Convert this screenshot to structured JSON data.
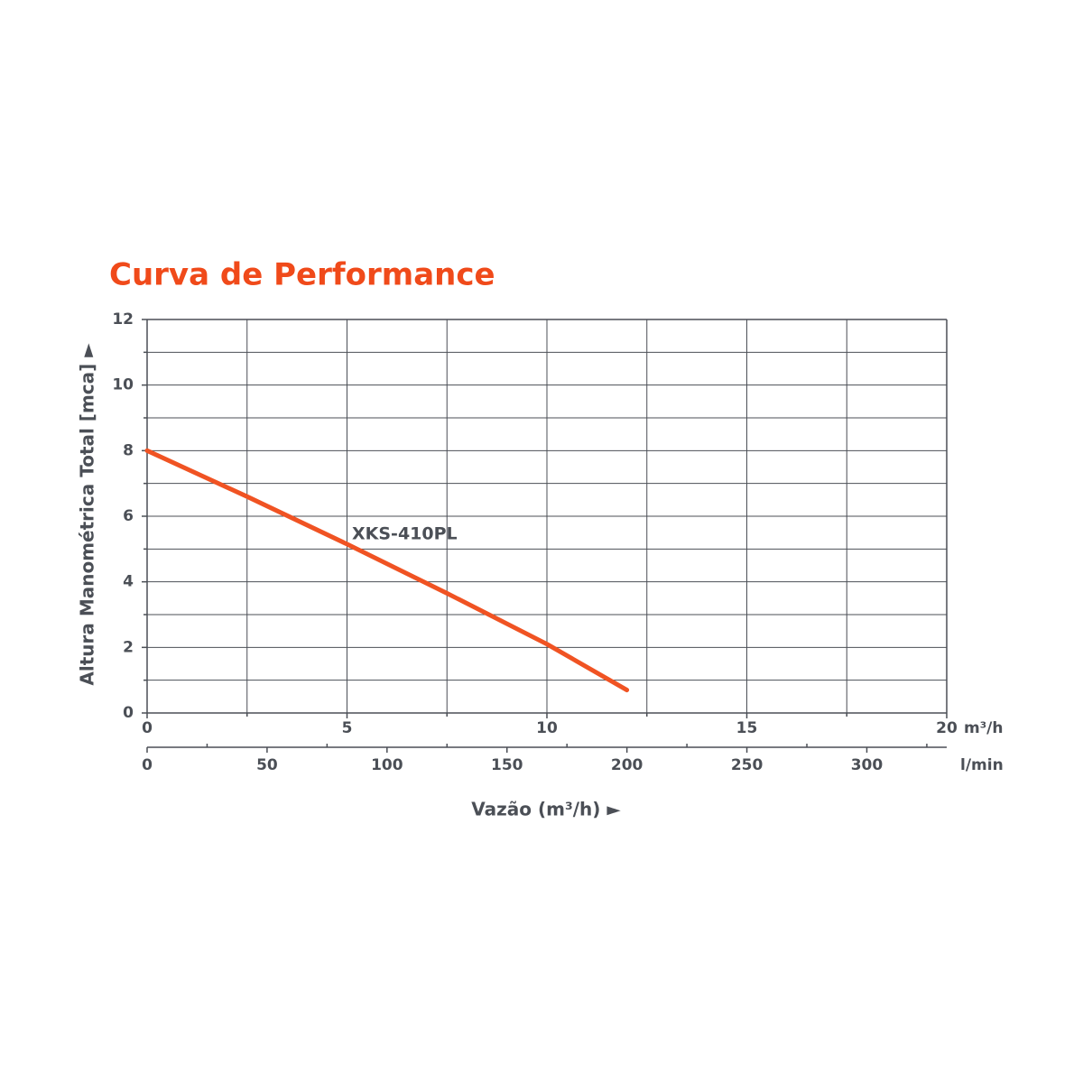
{
  "chart_data": {
    "type": "line",
    "title": "Curva de Performance",
    "xlabel": "Vazão (m³/h) ►",
    "ylabel": "Altura Manométrica Total [mca] ►",
    "x_unit": "m³/h",
    "x2_unit": "l/min",
    "annotation": "XKS-410PL",
    "x": [
      0,
      2.5,
      5,
      7.5,
      10,
      12
    ],
    "series": [
      {
        "name": "XKS-410PL",
        "color": "#f05323",
        "values": [
          8,
          6.6,
          5.15,
          3.65,
          2.1,
          0.7
        ]
      }
    ],
    "xlim": [
      0,
      20
    ],
    "xticks": [
      0,
      5,
      10,
      15,
      20
    ],
    "xticks_minor": [
      2.5,
      7.5,
      12.5,
      17.5
    ],
    "x2lim": [
      0,
      333.3
    ],
    "x2ticks": [
      0,
      50,
      100,
      150,
      200,
      250,
      300
    ],
    "x2ticks_minor": [
      25,
      75,
      125,
      175,
      225,
      275,
      325
    ],
    "ylim": [
      0,
      12
    ],
    "yticks": [
      0,
      2,
      4,
      6,
      8,
      10,
      12
    ],
    "yticks_minor": [
      1,
      3,
      5,
      7,
      9,
      11
    ],
    "grid": true,
    "title_color": "#f04a1a"
  }
}
